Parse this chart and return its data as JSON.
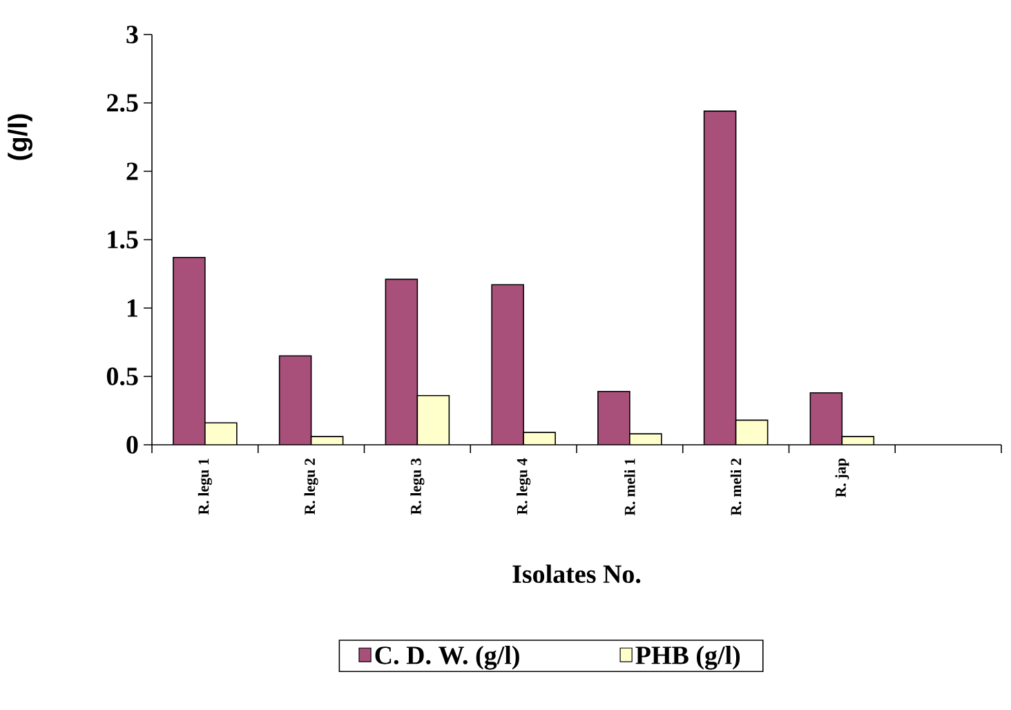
{
  "chart_data": {
    "type": "bar",
    "xlabel": "Isolates No.",
    "ylabel": "(g/l)",
    "categories": [
      "R. legu 1",
      "R. legu 2",
      "R. legu 3",
      "R. legu 4",
      "R. meli 1",
      "R. meli 2",
      "R. jap",
      null
    ],
    "series": [
      {
        "name": "C. D. W. (g/l)",
        "color": "#a8507a",
        "values": [
          1.37,
          0.65,
          1.21,
          1.17,
          0.39,
          2.44,
          0.38,
          null
        ]
      },
      {
        "name": "PHB (g/l)",
        "color": "#ffffcc",
        "values": [
          0.16,
          0.06,
          0.36,
          0.09,
          0.08,
          0.18,
          0.06,
          null
        ]
      }
    ],
    "ylim": [
      0,
      3
    ],
    "yticks": [
      0,
      0.5,
      1,
      1.5,
      2,
      2.5,
      3
    ],
    "legend": "bottom"
  }
}
